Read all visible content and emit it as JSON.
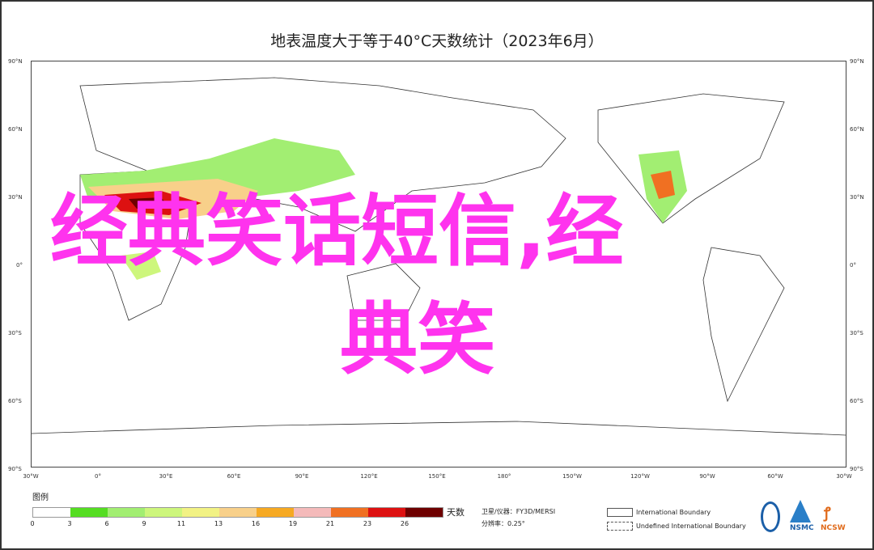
{
  "title": "地表温度大于等于40°C天数统计（2023年6月）",
  "overlay_text": {
    "line1": "经典笑话短信,经",
    "line2": "典笑"
  },
  "overlay_color": "#ff33ee",
  "lat_labels": [
    "90°N",
    "60°N",
    "30°N",
    "0°",
    "30°S",
    "60°S",
    "90°S"
  ],
  "lon_labels": [
    "30°W",
    "0°",
    "30°E",
    "60°E",
    "90°E",
    "120°E",
    "150°E",
    "180°",
    "150°W",
    "120°W",
    "90°W",
    "60°W",
    "30°W"
  ],
  "legend": {
    "title": "图例",
    "unit": "天数",
    "colors": [
      "#ffffff",
      "#55dd22",
      "#a2ee72",
      "#cdf67c",
      "#f2f284",
      "#f8d08a",
      "#f6a922",
      "#f4baba",
      "#f07022",
      "#dd1111",
      "#6e0000"
    ],
    "ticks": [
      "0",
      "3",
      "6",
      "9",
      "11",
      "13",
      "16",
      "19",
      "21",
      "23",
      "26"
    ]
  },
  "info": {
    "satellite": "卫星/仪器：FY3D/MERSI",
    "resolution": "分辨率：0.25°"
  },
  "boundaries": {
    "international": "International Boundary",
    "undefined": "Undefined International Boundary"
  },
  "logos": {
    "nsmc": "NSMC",
    "ncsw": "NCSW"
  }
}
